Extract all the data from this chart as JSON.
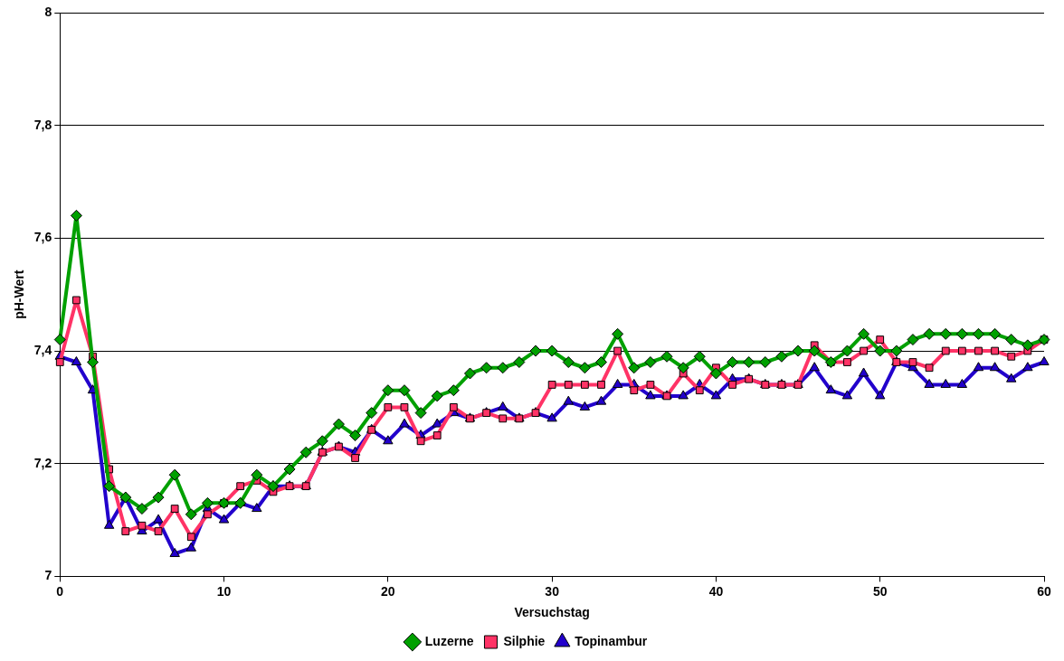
{
  "chart_data": {
    "type": "line",
    "xlabel": "Versuchstag",
    "ylabel": "pH-Wert",
    "x": [
      0,
      1,
      2,
      3,
      4,
      5,
      6,
      7,
      8,
      9,
      10,
      11,
      12,
      13,
      14,
      15,
      16,
      17,
      18,
      19,
      20,
      21,
      22,
      23,
      24,
      25,
      26,
      27,
      28,
      29,
      30,
      31,
      32,
      33,
      34,
      35,
      36,
      37,
      38,
      39,
      40,
      41,
      42,
      43,
      44,
      45,
      46,
      47,
      48,
      49,
      50,
      51,
      52,
      53,
      54,
      55,
      56,
      57,
      58,
      59,
      60
    ],
    "xlim": [
      0,
      60
    ],
    "xticks": [
      0,
      10,
      20,
      30,
      40,
      50,
      60
    ],
    "ylim": [
      7,
      8
    ],
    "yticks": [
      7,
      {
        "value": 7.2,
        "label": "7,2"
      },
      {
        "value": 7.4,
        "label": "7,4"
      },
      {
        "value": 7.6,
        "label": "7,6"
      },
      {
        "value": 7.8,
        "label": "7,8"
      },
      8
    ],
    "grid": "y",
    "legend": "bottom",
    "line_style": "solid",
    "series": [
      {
        "name": "Luzerne",
        "color": "#00a000",
        "marker": "diamond",
        "values": [
          7.42,
          7.64,
          7.38,
          7.16,
          7.14,
          7.12,
          7.14,
          7.18,
          7.11,
          7.13,
          7.13,
          7.13,
          7.18,
          7.16,
          7.19,
          7.22,
          7.24,
          7.27,
          7.25,
          7.29,
          7.33,
          7.33,
          7.29,
          7.32,
          7.33,
          7.36,
          7.37,
          7.37,
          7.38,
          7.4,
          7.4,
          7.38,
          7.37,
          7.38,
          7.43,
          7.37,
          7.38,
          7.39,
          7.37,
          7.39,
          7.36,
          7.38,
          7.38,
          7.38,
          7.39,
          7.4,
          7.4,
          7.38,
          7.4,
          7.43,
          7.4,
          7.4,
          7.42,
          7.43,
          7.43,
          7.43,
          7.43,
          7.43,
          7.42,
          7.41,
          7.42
        ]
      },
      {
        "name": "Silphie",
        "color": "#ff3366",
        "marker": "square",
        "values": [
          7.38,
          7.49,
          7.39,
          7.19,
          7.08,
          7.09,
          7.08,
          7.12,
          7.07,
          7.11,
          7.13,
          7.16,
          7.17,
          7.15,
          7.16,
          7.16,
          7.22,
          7.23,
          7.21,
          7.26,
          7.3,
          7.3,
          7.24,
          7.25,
          7.3,
          7.28,
          7.29,
          7.28,
          7.28,
          7.29,
          7.34,
          7.34,
          7.34,
          7.34,
          7.4,
          7.33,
          7.34,
          7.32,
          7.36,
          7.33,
          7.37,
          7.34,
          7.35,
          7.34,
          7.34,
          7.34,
          7.41,
          7.38,
          7.38,
          7.4,
          7.42,
          7.38,
          7.38,
          7.37,
          7.4,
          7.4,
          7.4,
          7.4,
          7.39,
          7.4,
          7.42
        ]
      },
      {
        "name": "Topinambur",
        "color": "#2200cc",
        "marker": "triangle",
        "values": [
          7.39,
          7.38,
          7.33,
          7.09,
          7.14,
          7.08,
          7.1,
          7.04,
          7.05,
          7.12,
          7.1,
          7.13,
          7.12,
          7.16,
          7.16,
          7.16,
          7.22,
          7.23,
          7.22,
          7.26,
          7.24,
          7.27,
          7.25,
          7.27,
          7.29,
          7.28,
          7.29,
          7.3,
          7.28,
          7.29,
          7.28,
          7.31,
          7.3,
          7.31,
          7.34,
          7.34,
          7.32,
          7.32,
          7.32,
          7.34,
          7.32,
          7.35,
          7.35,
          7.34,
          7.34,
          7.34,
          7.37,
          7.33,
          7.32,
          7.36,
          7.32,
          7.38,
          7.37,
          7.34,
          7.34,
          7.34,
          7.37,
          7.37,
          7.35,
          7.37,
          7.38
        ]
      }
    ]
  }
}
